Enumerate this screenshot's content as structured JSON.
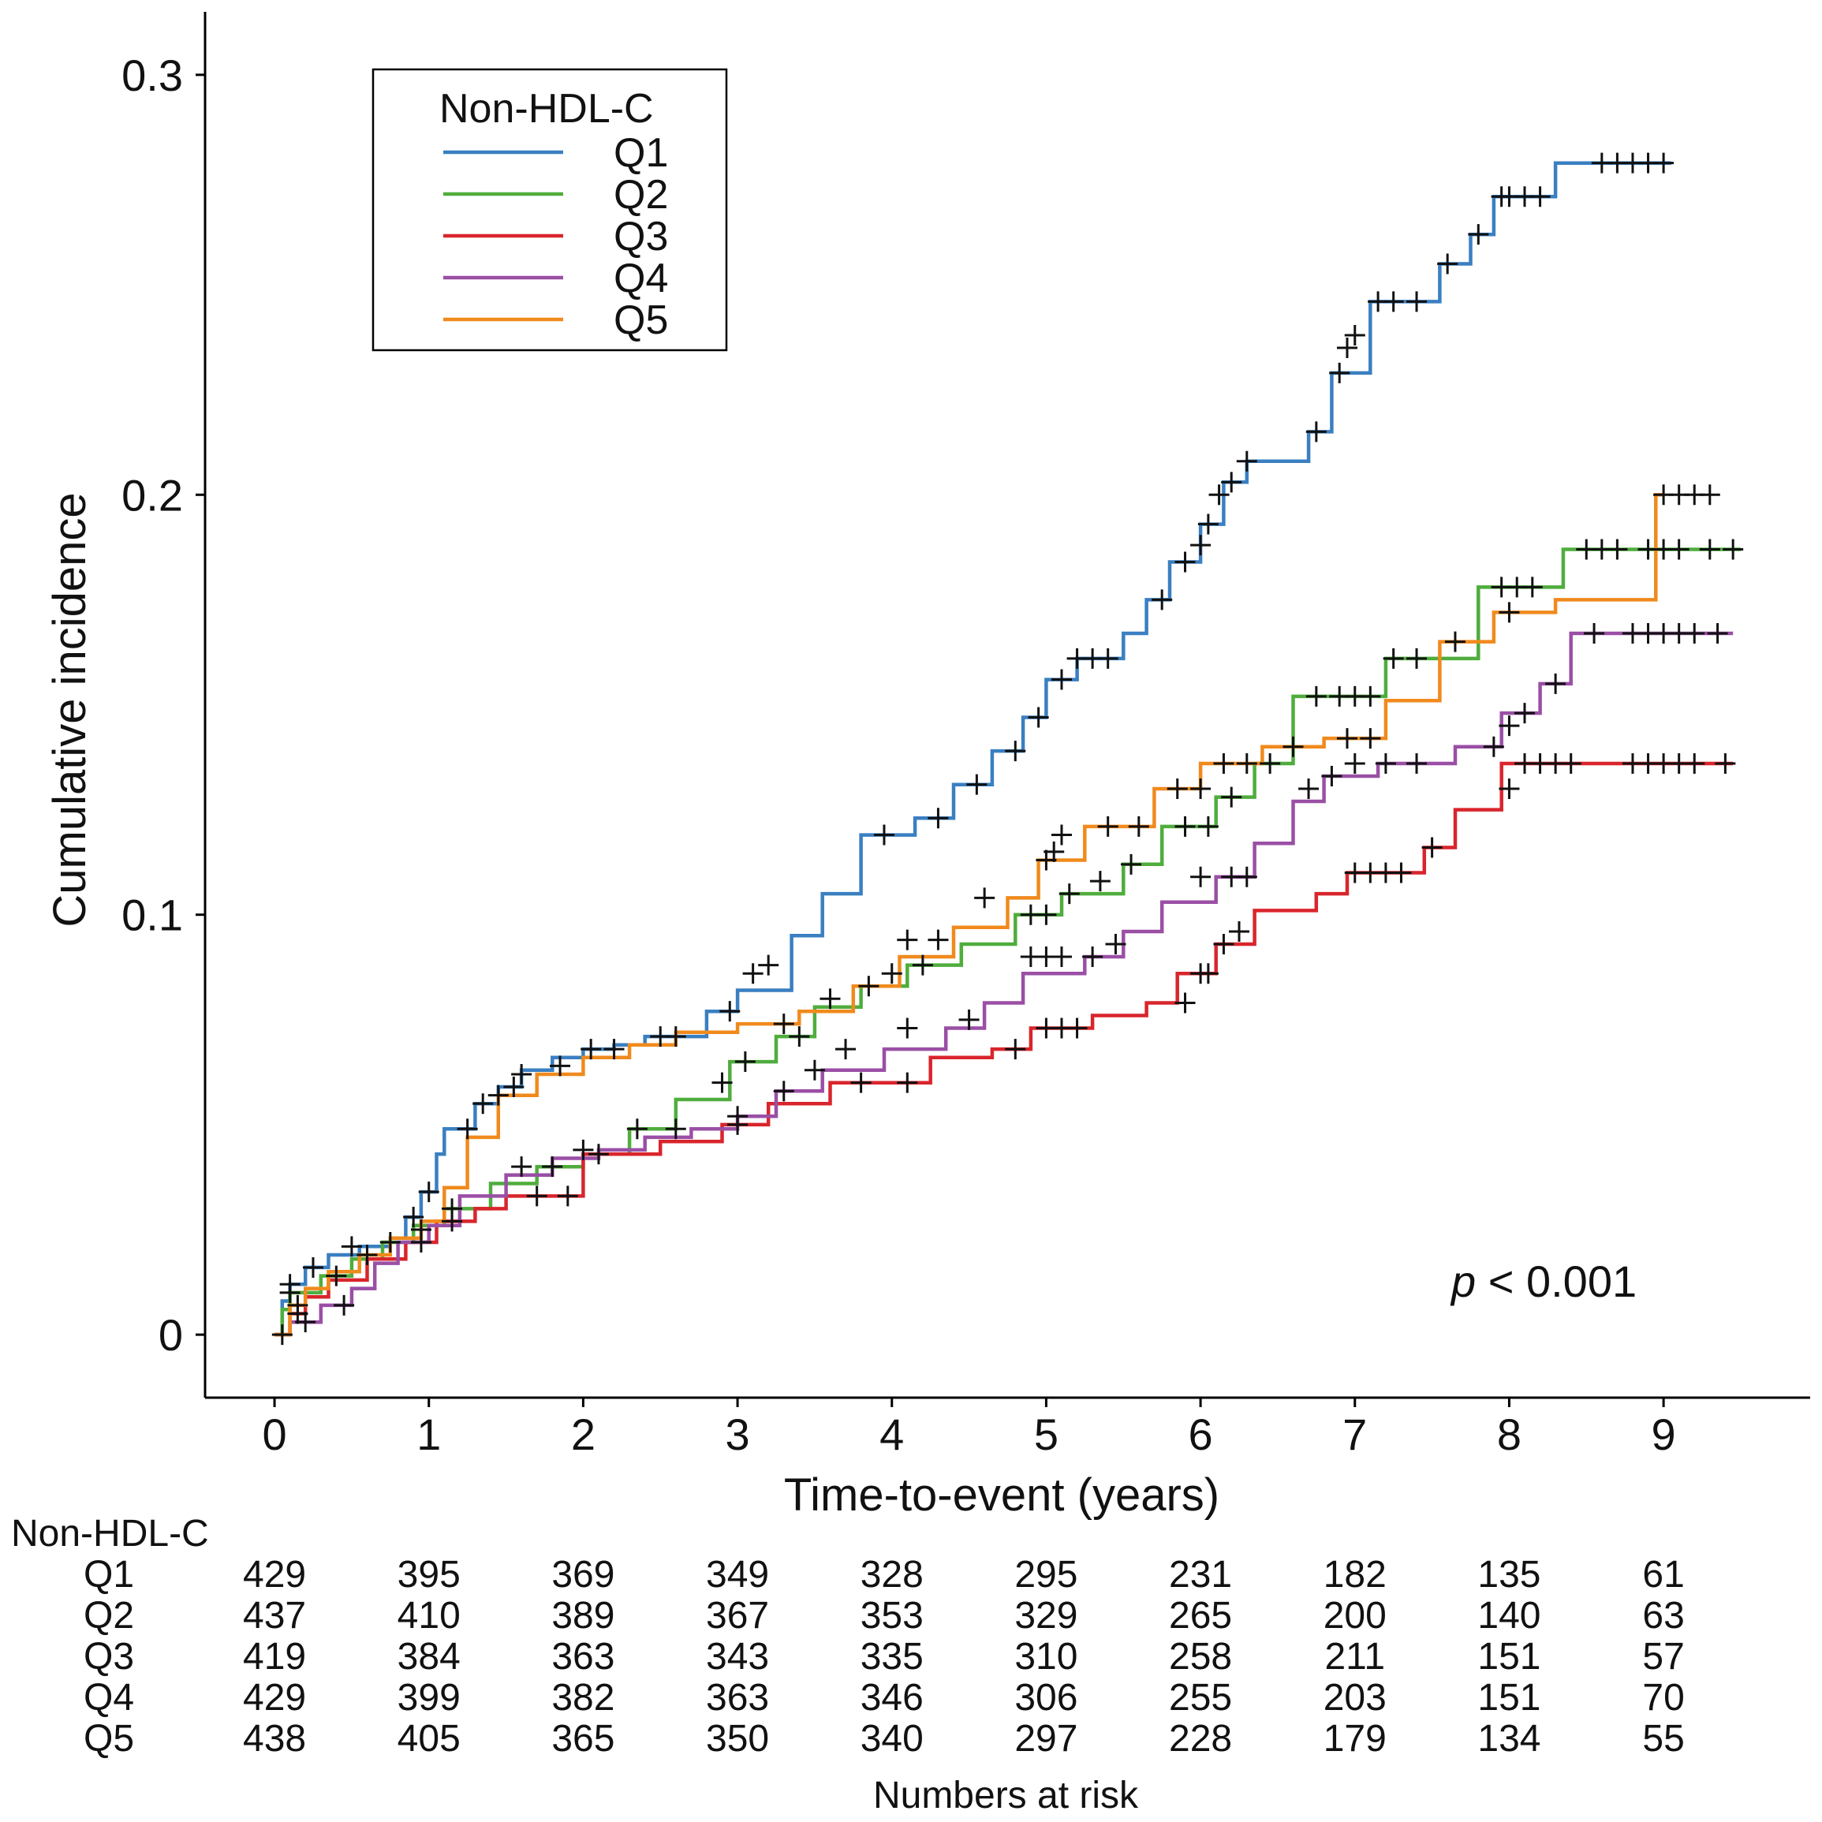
{
  "chart_data": {
    "type": "line",
    "subtype": "step",
    "title": "",
    "xlabel": "Time-to-event (years)",
    "ylabel": "Cumulative incidence",
    "xlim": [
      -0.45,
      9.95
    ],
    "ylim": [
      -0.015,
      0.315
    ],
    "xticks": [
      "0",
      "1",
      "2",
      "3",
      "4",
      "5",
      "6",
      "7",
      "8",
      "9"
    ],
    "yticks": [
      {
        "value": 0,
        "label": "0"
      },
      {
        "value": 0.1,
        "label": "0.1"
      },
      {
        "value": 0.2,
        "label": "0.2"
      },
      {
        "value": 0.3,
        "label": "0.3"
      }
    ],
    "legend": {
      "title": "Non-HDL-C",
      "position": "top-left"
    },
    "annotation": {
      "italic": "p",
      "text": " < 0.001"
    },
    "series": [
      {
        "name": "Q1",
        "color": "#3a7fc1",
        "x": [
          0,
          0.05,
          0.1,
          0.2,
          0.35,
          0.55,
          0.75,
          0.85,
          0.95,
          1.05,
          1.1,
          1.3,
          1.45,
          1.6,
          1.8,
          2.0,
          2.2,
          2.4,
          2.8,
          3.0,
          3.35,
          3.55,
          3.8,
          4.15,
          4.4,
          4.65,
          4.85,
          5.0,
          5.2,
          5.5,
          5.65,
          5.8,
          6.0,
          6.15,
          6.3,
          6.7,
          6.85,
          7.1,
          7.55,
          7.75,
          7.9,
          8.3,
          9.05
        ],
        "y": [
          0,
          0.008,
          0.012,
          0.016,
          0.019,
          0.021,
          0.023,
          0.028,
          0.034,
          0.043,
          0.049,
          0.055,
          0.059,
          0.063,
          0.066,
          0.068,
          0.069,
          0.071,
          0.077,
          0.082,
          0.095,
          0.105,
          0.119,
          0.123,
          0.131,
          0.139,
          0.147,
          0.156,
          0.161,
          0.167,
          0.175,
          0.184,
          0.193,
          0.203,
          0.208,
          0.215,
          0.229,
          0.246,
          0.255,
          0.262,
          0.271,
          0.279,
          0.279
        ]
      },
      {
        "name": "Q2",
        "color": "#4fad3d",
        "x": [
          0,
          0.05,
          0.1,
          0.3,
          0.5,
          0.7,
          0.9,
          1.1,
          1.4,
          1.7,
          2.0,
          2.3,
          2.6,
          2.95,
          3.25,
          3.5,
          3.8,
          4.1,
          4.45,
          4.8,
          5.1,
          5.5,
          5.75,
          6.1,
          6.35,
          6.6,
          7.2,
          7.8,
          8.35,
          9.5
        ],
        "y": [
          0,
          0.006,
          0.01,
          0.014,
          0.018,
          0.022,
          0.026,
          0.03,
          0.036,
          0.04,
          0.043,
          0.049,
          0.056,
          0.065,
          0.071,
          0.078,
          0.083,
          0.088,
          0.093,
          0.1,
          0.105,
          0.112,
          0.121,
          0.128,
          0.136,
          0.152,
          0.161,
          0.178,
          0.187,
          0.187
        ]
      },
      {
        "name": "Q3",
        "color": "#d9252c",
        "x": [
          0,
          0.1,
          0.2,
          0.35,
          0.6,
          0.85,
          1.05,
          1.3,
          1.5,
          2.0,
          2.5,
          2.9,
          3.2,
          3.6,
          4.25,
          4.65,
          4.9,
          5.3,
          5.65,
          5.85,
          6.1,
          6.35,
          6.75,
          6.95,
          7.45,
          7.65,
          7.95,
          9.45
        ],
        "y": [
          0,
          0.005,
          0.009,
          0.013,
          0.018,
          0.022,
          0.027,
          0.03,
          0.033,
          0.043,
          0.046,
          0.05,
          0.055,
          0.06,
          0.066,
          0.068,
          0.073,
          0.076,
          0.079,
          0.086,
          0.093,
          0.101,
          0.105,
          0.11,
          0.116,
          0.125,
          0.136,
          0.136
        ]
      },
      {
        "name": "Q4",
        "color": "#9a4fa5",
        "x": [
          0,
          0.1,
          0.3,
          0.5,
          0.65,
          0.8,
          1.0,
          1.2,
          1.5,
          1.8,
          2.1,
          2.4,
          2.7,
          3.0,
          3.25,
          3.55,
          3.95,
          4.35,
          4.6,
          4.85,
          5.25,
          5.5,
          5.75,
          6.1,
          6.35,
          6.6,
          6.8,
          7.15,
          7.65,
          7.95,
          8.2,
          8.4,
          9.45
        ],
        "y": [
          0,
          0.003,
          0.007,
          0.011,
          0.017,
          0.022,
          0.026,
          0.033,
          0.038,
          0.042,
          0.044,
          0.047,
          0.049,
          0.052,
          0.058,
          0.063,
          0.068,
          0.073,
          0.079,
          0.086,
          0.09,
          0.096,
          0.103,
          0.109,
          0.117,
          0.127,
          0.133,
          0.136,
          0.14,
          0.148,
          0.155,
          0.167,
          0.167
        ]
      },
      {
        "name": "Q5",
        "color": "#f08a1d",
        "x": [
          0,
          0.1,
          0.2,
          0.35,
          0.55,
          0.75,
          0.95,
          1.1,
          1.25,
          1.45,
          1.7,
          2.0,
          2.3,
          2.6,
          3.0,
          3.4,
          3.75,
          4.05,
          4.4,
          4.75,
          4.95,
          5.25,
          5.7,
          6.0,
          6.4,
          6.8,
          7.2,
          7.55,
          7.9,
          8.3,
          8.95,
          9.0
        ],
        "y": [
          0,
          0.007,
          0.011,
          0.015,
          0.019,
          0.023,
          0.027,
          0.035,
          0.047,
          0.057,
          0.062,
          0.066,
          0.069,
          0.072,
          0.074,
          0.077,
          0.083,
          0.09,
          0.097,
          0.104,
          0.113,
          0.121,
          0.13,
          0.136,
          0.14,
          0.142,
          0.151,
          0.165,
          0.172,
          0.175,
          0.2,
          0.2
        ]
      }
    ],
    "censor_marks": {
      "Q1": [
        [
          0.1,
          0.012
        ],
        [
          0.25,
          0.016
        ],
        [
          0.5,
          0.021
        ],
        [
          0.9,
          0.028
        ],
        [
          1.0,
          0.034
        ],
        [
          1.25,
          0.049
        ],
        [
          1.35,
          0.055
        ],
        [
          1.55,
          0.059
        ],
        [
          2.05,
          0.068
        ],
        [
          2.6,
          0.071
        ],
        [
          2.95,
          0.077
        ],
        [
          3.1,
          0.086
        ],
        [
          3.2,
          0.088
        ],
        [
          3.95,
          0.119
        ],
        [
          4.3,
          0.123
        ],
        [
          4.55,
          0.131
        ],
        [
          4.8,
          0.139
        ],
        [
          4.95,
          0.147
        ],
        [
          5.1,
          0.156
        ],
        [
          5.2,
          0.161
        ],
        [
          5.3,
          0.161
        ],
        [
          5.4,
          0.161
        ],
        [
          5.75,
          0.175
        ],
        [
          5.9,
          0.184
        ],
        [
          6.0,
          0.188
        ],
        [
          6.05,
          0.193
        ],
        [
          6.12,
          0.2
        ],
        [
          6.2,
          0.203
        ],
        [
          6.3,
          0.208
        ],
        [
          6.75,
          0.215
        ],
        [
          6.9,
          0.229
        ],
        [
          6.95,
          0.235
        ],
        [
          7.0,
          0.238
        ],
        [
          7.15,
          0.246
        ],
        [
          7.25,
          0.246
        ],
        [
          7.4,
          0.246
        ],
        [
          7.6,
          0.255
        ],
        [
          7.8,
          0.262
        ],
        [
          7.95,
          0.271
        ],
        [
          8.0,
          0.271
        ],
        [
          8.1,
          0.271
        ],
        [
          8.2,
          0.271
        ],
        [
          8.6,
          0.279
        ],
        [
          8.7,
          0.279
        ],
        [
          8.8,
          0.279
        ],
        [
          8.9,
          0.279
        ],
        [
          9.0,
          0.279
        ]
      ],
      "Q2": [
        [
          0.1,
          0.01
        ],
        [
          0.4,
          0.014
        ],
        [
          0.75,
          0.022
        ],
        [
          1.15,
          0.03
        ],
        [
          1.8,
          0.04
        ],
        [
          2.35,
          0.049
        ],
        [
          2.9,
          0.06
        ],
        [
          3.05,
          0.065
        ],
        [
          3.4,
          0.071
        ],
        [
          3.85,
          0.083
        ],
        [
          4.2,
          0.088
        ],
        [
          4.9,
          0.1
        ],
        [
          5.0,
          0.1
        ],
        [
          5.15,
          0.105
        ],
        [
          5.35,
          0.108
        ],
        [
          5.55,
          0.112
        ],
        [
          5.9,
          0.121
        ],
        [
          6.05,
          0.121
        ],
        [
          6.2,
          0.128
        ],
        [
          6.45,
          0.136
        ],
        [
          6.75,
          0.152
        ],
        [
          6.9,
          0.152
        ],
        [
          7.0,
          0.152
        ],
        [
          7.1,
          0.152
        ],
        [
          7.25,
          0.161
        ],
        [
          7.4,
          0.161
        ],
        [
          7.95,
          0.178
        ],
        [
          8.05,
          0.178
        ],
        [
          8.15,
          0.178
        ],
        [
          8.5,
          0.187
        ],
        [
          8.7,
          0.187
        ],
        [
          8.9,
          0.187
        ],
        [
          9.0,
          0.187
        ],
        [
          9.1,
          0.187
        ],
        [
          9.3,
          0.187
        ],
        [
          9.45,
          0.187
        ]
      ],
      "Q3": [
        [
          0.05,
          0
        ],
        [
          0.15,
          0.005
        ],
        [
          0.95,
          0.022
        ],
        [
          1.15,
          0.027
        ],
        [
          1.7,
          0.033
        ],
        [
          1.9,
          0.033
        ],
        [
          2.1,
          0.043
        ],
        [
          3.0,
          0.05
        ],
        [
          3.8,
          0.06
        ],
        [
          4.1,
          0.06
        ],
        [
          4.8,
          0.068
        ],
        [
          5.0,
          0.073
        ],
        [
          5.1,
          0.073
        ],
        [
          5.2,
          0.073
        ],
        [
          5.9,
          0.079
        ],
        [
          6.0,
          0.086
        ],
        [
          6.05,
          0.086
        ],
        [
          6.15,
          0.093
        ],
        [
          6.25,
          0.096
        ],
        [
          7.0,
          0.11
        ],
        [
          7.1,
          0.11
        ],
        [
          7.2,
          0.11
        ],
        [
          7.3,
          0.11
        ],
        [
          7.5,
          0.116
        ],
        [
          8.0,
          0.13
        ],
        [
          8.1,
          0.136
        ],
        [
          8.2,
          0.136
        ],
        [
          8.3,
          0.136
        ],
        [
          8.4,
          0.136
        ],
        [
          8.8,
          0.136
        ],
        [
          8.9,
          0.136
        ],
        [
          9.0,
          0.136
        ],
        [
          9.1,
          0.136
        ],
        [
          9.2,
          0.136
        ],
        [
          9.4,
          0.136
        ]
      ],
      "Q4": [
        [
          0.2,
          0.003
        ],
        [
          0.45,
          0.007
        ],
        [
          1.6,
          0.04
        ],
        [
          2.0,
          0.044
        ],
        [
          2.6,
          0.049
        ],
        [
          3.0,
          0.052
        ],
        [
          3.3,
          0.058
        ],
        [
          3.5,
          0.063
        ],
        [
          3.7,
          0.068
        ],
        [
          4.1,
          0.073
        ],
        [
          4.5,
          0.075
        ],
        [
          4.9,
          0.09
        ],
        [
          5.0,
          0.09
        ],
        [
          5.1,
          0.09
        ],
        [
          5.3,
          0.09
        ],
        [
          5.45,
          0.093
        ],
        [
          6.0,
          0.109
        ],
        [
          6.2,
          0.109
        ],
        [
          6.3,
          0.109
        ],
        [
          6.7,
          0.13
        ],
        [
          6.85,
          0.133
        ],
        [
          7.0,
          0.136
        ],
        [
          7.2,
          0.136
        ],
        [
          7.4,
          0.136
        ],
        [
          7.9,
          0.14
        ],
        [
          8.0,
          0.145
        ],
        [
          8.1,
          0.148
        ],
        [
          8.3,
          0.155
        ],
        [
          8.55,
          0.167
        ],
        [
          8.8,
          0.167
        ],
        [
          8.9,
          0.167
        ],
        [
          9.0,
          0.167
        ],
        [
          9.1,
          0.167
        ],
        [
          9.2,
          0.167
        ],
        [
          9.35,
          0.167
        ]
      ],
      "Q5": [
        [
          0.15,
          0.007
        ],
        [
          0.6,
          0.019
        ],
        [
          0.95,
          0.025
        ],
        [
          1.45,
          0.057
        ],
        [
          1.6,
          0.062
        ],
        [
          1.85,
          0.064
        ],
        [
          2.2,
          0.068
        ],
        [
          2.5,
          0.071
        ],
        [
          3.3,
          0.074
        ],
        [
          3.6,
          0.08
        ],
        [
          4.0,
          0.086
        ],
        [
          4.1,
          0.094
        ],
        [
          4.3,
          0.094
        ],
        [
          4.6,
          0.104
        ],
        [
          5.0,
          0.113
        ],
        [
          5.05,
          0.115
        ],
        [
          5.1,
          0.119
        ],
        [
          5.4,
          0.121
        ],
        [
          5.6,
          0.121
        ],
        [
          5.85,
          0.13
        ],
        [
          6.0,
          0.13
        ],
        [
          6.15,
          0.136
        ],
        [
          6.3,
          0.136
        ],
        [
          6.6,
          0.14
        ],
        [
          6.95,
          0.142
        ],
        [
          7.1,
          0.142
        ],
        [
          7.65,
          0.165
        ],
        [
          8.0,
          0.172
        ],
        [
          8.6,
          0.187
        ],
        [
          9.0,
          0.2
        ],
        [
          9.1,
          0.2
        ],
        [
          9.2,
          0.2
        ],
        [
          9.3,
          0.2
        ]
      ]
    },
    "risk_table": {
      "header": "Non-HDL-C",
      "caption": "Numbers at risk",
      "rows": [
        {
          "label": "Q1",
          "values": [
            "429",
            "395",
            "369",
            "349",
            "328",
            "295",
            "231",
            "182",
            "135",
            "61"
          ]
        },
        {
          "label": "Q2",
          "values": [
            "437",
            "410",
            "389",
            "367",
            "353",
            "329",
            "265",
            "200",
            "140",
            "63"
          ]
        },
        {
          "label": "Q3",
          "values": [
            "419",
            "384",
            "363",
            "343",
            "335",
            "310",
            "258",
            "211",
            "151",
            "57"
          ]
        },
        {
          "label": "Q4",
          "values": [
            "429",
            "399",
            "382",
            "363",
            "346",
            "306",
            "255",
            "203",
            "151",
            "70"
          ]
        },
        {
          "label": "Q5",
          "values": [
            "438",
            "405",
            "365",
            "350",
            "340",
            "297",
            "228",
            "179",
            "134",
            "55"
          ]
        }
      ]
    }
  }
}
